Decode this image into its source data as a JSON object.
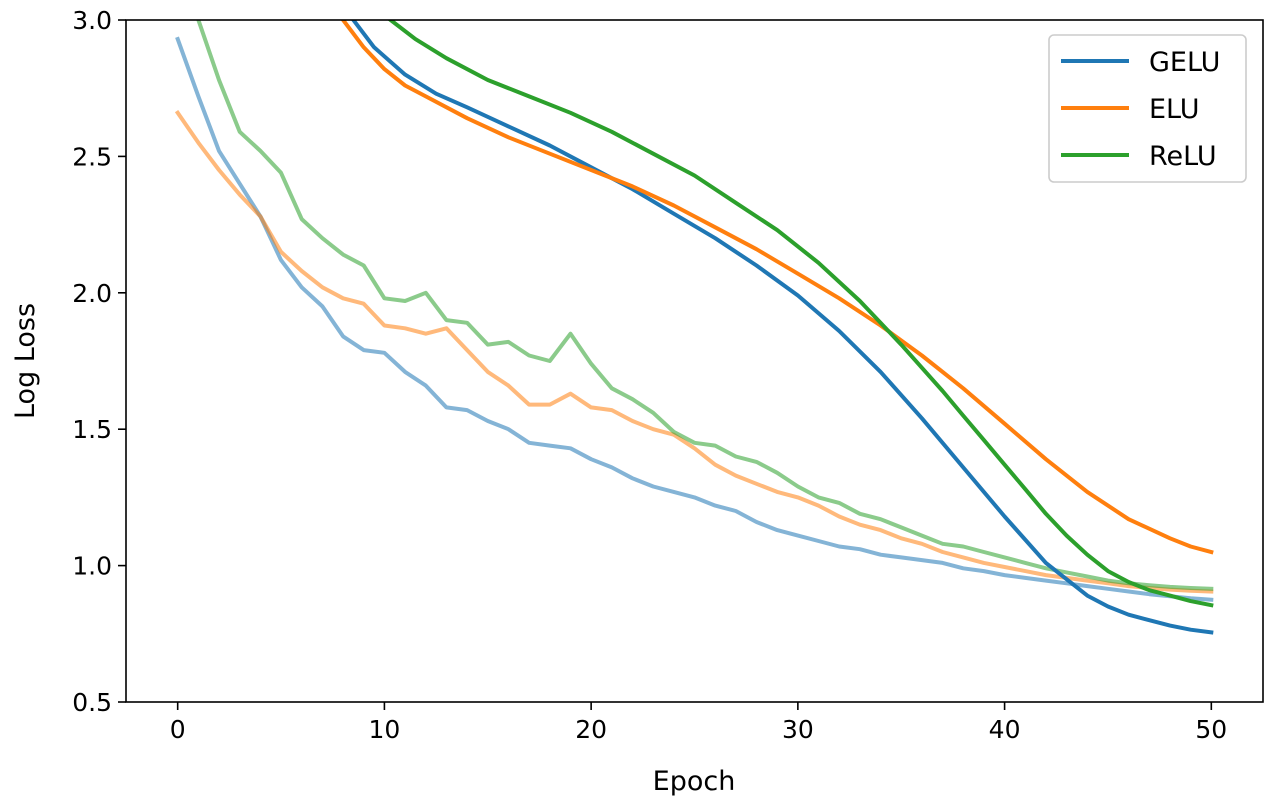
{
  "chart_data": {
    "type": "line",
    "title": "",
    "xlabel": "Epoch",
    "ylabel": "Log Loss",
    "xlim": [
      -2.5,
      52.5
    ],
    "ylim": [
      0.5,
      3.0
    ],
    "xticks": [
      0,
      10,
      20,
      30,
      40,
      50
    ],
    "yticks": [
      0.5,
      1.0,
      1.5,
      2.0,
      2.5,
      3.0
    ],
    "xtick_labels": [
      "0",
      "10",
      "20",
      "30",
      "40",
      "50"
    ],
    "ytick_labels": [
      "0.5",
      "1.0",
      "1.5",
      "2.0",
      "2.5",
      "3.0"
    ],
    "grid": false,
    "legend_position": "top-right",
    "series": [
      {
        "name": "GELU",
        "color": "#1f77b4",
        "opacity": 1.0,
        "x": [
          8.5,
          9.5,
          11,
          12.5,
          14,
          16,
          18,
          20,
          22,
          24,
          26,
          28,
          30,
          32,
          34,
          36,
          38,
          40,
          42,
          44,
          45,
          46,
          47,
          48,
          49,
          50
        ],
        "y": [
          3.0,
          2.9,
          2.8,
          2.73,
          2.68,
          2.61,
          2.54,
          2.46,
          2.38,
          2.29,
          2.2,
          2.1,
          1.99,
          1.86,
          1.71,
          1.54,
          1.36,
          1.18,
          1.01,
          0.89,
          0.85,
          0.82,
          0.8,
          0.78,
          0.765,
          0.755
        ]
      },
      {
        "name": "ELU",
        "color": "#ff7f0e",
        "opacity": 1.0,
        "x": [
          8,
          9,
          10,
          11,
          12,
          14,
          16,
          18,
          20,
          22,
          24,
          26,
          28,
          30,
          32,
          34,
          36,
          38,
          40,
          42,
          44,
          46,
          48,
          49,
          50
        ],
        "y": [
          3.0,
          2.9,
          2.82,
          2.76,
          2.72,
          2.64,
          2.57,
          2.51,
          2.45,
          2.39,
          2.32,
          2.24,
          2.16,
          2.07,
          1.98,
          1.88,
          1.77,
          1.65,
          1.52,
          1.39,
          1.27,
          1.17,
          1.1,
          1.07,
          1.05
        ]
      },
      {
        "name": "ReLU",
        "color": "#2ca02c",
        "opacity": 1.0,
        "x": [
          10.3,
          11.5,
          13,
          15,
          17,
          19,
          21,
          23,
          25,
          27,
          29,
          31,
          33,
          35,
          37,
          38,
          39,
          40,
          41,
          42,
          43,
          44,
          45,
          46,
          47,
          48,
          49,
          50
        ],
        "y": [
          3.0,
          2.93,
          2.86,
          2.78,
          2.72,
          2.66,
          2.59,
          2.51,
          2.43,
          2.33,
          2.23,
          2.11,
          1.97,
          1.81,
          1.64,
          1.55,
          1.46,
          1.37,
          1.28,
          1.19,
          1.11,
          1.04,
          0.98,
          0.94,
          0.91,
          0.89,
          0.87,
          0.855
        ]
      },
      {
        "name": "",
        "color": "#1f77b4",
        "opacity": 0.55,
        "x": [
          0,
          1,
          2,
          3,
          4,
          5,
          6,
          7,
          8,
          9,
          10,
          11,
          12,
          13,
          14,
          15,
          16,
          17,
          18,
          19,
          20,
          21,
          22,
          23,
          24,
          25,
          26,
          27,
          28,
          29,
          30,
          31,
          32,
          33,
          34,
          35,
          36,
          37,
          38,
          39,
          40,
          41,
          42,
          43,
          44,
          45,
          46,
          47,
          48,
          49,
          50
        ],
        "y": [
          2.93,
          2.72,
          2.52,
          2.4,
          2.28,
          2.12,
          2.02,
          1.95,
          1.84,
          1.79,
          1.78,
          1.71,
          1.66,
          1.58,
          1.57,
          1.53,
          1.5,
          1.45,
          1.44,
          1.43,
          1.39,
          1.36,
          1.32,
          1.29,
          1.27,
          1.25,
          1.22,
          1.2,
          1.16,
          1.13,
          1.11,
          1.09,
          1.07,
          1.06,
          1.04,
          1.03,
          1.02,
          1.01,
          0.99,
          0.98,
          0.965,
          0.955,
          0.945,
          0.935,
          0.925,
          0.915,
          0.905,
          0.895,
          0.888,
          0.88,
          0.875
        ]
      },
      {
        "name": "",
        "color": "#ff7f0e",
        "opacity": 0.55,
        "x": [
          0,
          1,
          2,
          3,
          4,
          5,
          6,
          7,
          8,
          9,
          10,
          11,
          12,
          13,
          14,
          15,
          16,
          17,
          18,
          19,
          20,
          21,
          22,
          23,
          24,
          25,
          26,
          27,
          28,
          29,
          30,
          31,
          32,
          33,
          34,
          35,
          36,
          37,
          38,
          39,
          40,
          41,
          42,
          43,
          44,
          45,
          46,
          47,
          48,
          49,
          50
        ],
        "y": [
          2.66,
          2.55,
          2.45,
          2.36,
          2.28,
          2.15,
          2.08,
          2.02,
          1.98,
          1.96,
          1.88,
          1.87,
          1.85,
          1.87,
          1.79,
          1.71,
          1.66,
          1.59,
          1.59,
          1.63,
          1.58,
          1.57,
          1.53,
          1.5,
          1.48,
          1.43,
          1.37,
          1.33,
          1.3,
          1.27,
          1.25,
          1.22,
          1.18,
          1.15,
          1.13,
          1.1,
          1.08,
          1.05,
          1.03,
          1.01,
          0.995,
          0.98,
          0.965,
          0.955,
          0.945,
          0.935,
          0.925,
          0.918,
          0.912,
          0.908,
          0.905
        ]
      },
      {
        "name": "",
        "color": "#2ca02c",
        "opacity": 0.55,
        "x": [
          1,
          2,
          3,
          4,
          5,
          6,
          7,
          8,
          9,
          10,
          11,
          12,
          13,
          14,
          15,
          16,
          17,
          18,
          19,
          20,
          21,
          22,
          23,
          24,
          25,
          26,
          27,
          28,
          29,
          30,
          31,
          32,
          33,
          34,
          35,
          36,
          37,
          38,
          39,
          40,
          41,
          42,
          43,
          44,
          45,
          46,
          47,
          48,
          49,
          50
        ],
        "y": [
          3.0,
          2.78,
          2.59,
          2.52,
          2.44,
          2.27,
          2.2,
          2.14,
          2.1,
          1.98,
          1.97,
          2.0,
          1.9,
          1.89,
          1.81,
          1.82,
          1.77,
          1.75,
          1.85,
          1.74,
          1.65,
          1.61,
          1.56,
          1.49,
          1.45,
          1.44,
          1.4,
          1.38,
          1.34,
          1.29,
          1.25,
          1.23,
          1.19,
          1.17,
          1.14,
          1.11,
          1.08,
          1.07,
          1.05,
          1.03,
          1.01,
          0.99,
          0.975,
          0.96,
          0.945,
          0.935,
          0.928,
          0.922,
          0.918,
          0.915
        ]
      }
    ]
  }
}
